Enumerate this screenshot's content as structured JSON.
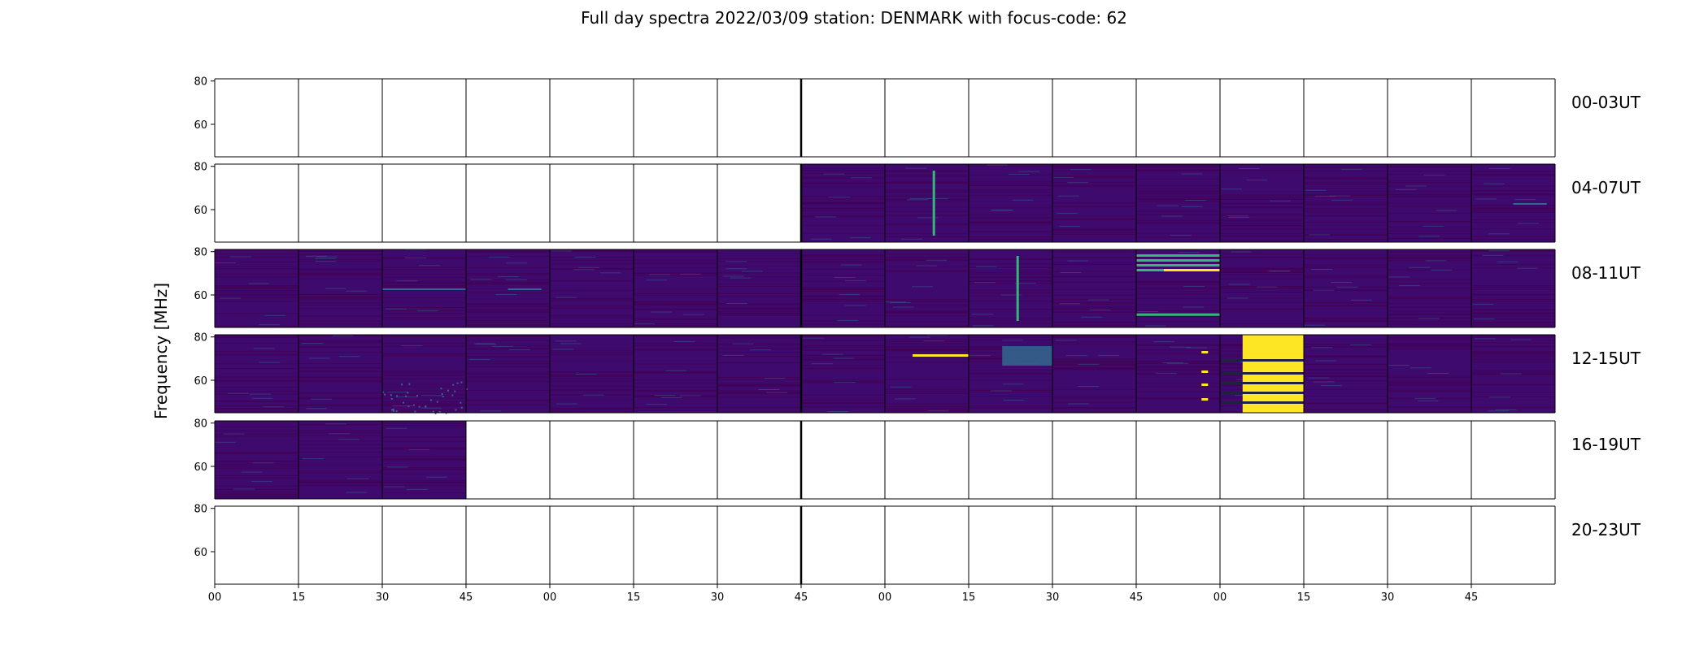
{
  "chart_data": {
    "type": "heatmap",
    "title": "Full day spectra 2022/03/09 station: DENMARK with focus-code: 62",
    "ylabel": "Frequency [MHz]",
    "xlabel": "",
    "ylim": [
      45,
      81
    ],
    "yticks": [
      60,
      80
    ],
    "x_tick_labels": [
      "00",
      "15",
      "30",
      "45",
      "00",
      "15",
      "30",
      "45",
      "00",
      "15",
      "30",
      "45",
      "00",
      "15",
      "30",
      "45"
    ],
    "colormap": [
      "#440154",
      "#31688e",
      "#35b779",
      "#fde725"
    ],
    "background_color": "#3e0a6e",
    "rows": [
      {
        "label": "00-03UT",
        "filled": [
          0,
          0,
          0,
          0,
          0,
          0,
          0,
          0,
          0,
          0,
          0,
          0,
          0,
          0,
          0,
          0
        ]
      },
      {
        "label": "04-07UT",
        "filled": [
          0,
          0,
          0,
          0,
          0,
          0,
          0,
          1,
          1,
          1,
          1,
          1,
          1,
          1,
          1,
          1
        ]
      },
      {
        "label": "08-11UT",
        "filled": [
          1,
          1,
          1,
          1,
          1,
          1,
          1,
          1,
          1,
          1,
          1,
          1,
          1,
          1,
          1,
          1
        ]
      },
      {
        "label": "12-15UT",
        "filled": [
          1,
          1,
          1,
          1,
          1,
          1,
          1,
          1,
          1,
          1,
          1,
          1,
          1,
          1,
          1,
          1
        ]
      },
      {
        "label": "16-19UT",
        "filled": [
          1,
          1,
          1,
          0,
          0,
          0,
          0,
          0,
          0,
          0,
          0,
          0,
          0,
          0,
          0,
          0
        ]
      },
      {
        "label": "20-23UT",
        "filled": [
          0,
          0,
          0,
          0,
          0,
          0,
          0,
          0,
          0,
          0,
          0,
          0,
          0,
          0,
          0,
          0
        ]
      }
    ],
    "features": [
      {
        "row": 1,
        "panel": 8,
        "kind": "vline",
        "color": "#35b779"
      },
      {
        "row": 1,
        "panel": 15,
        "kind": "hdash",
        "color": "#31688e"
      },
      {
        "row": 2,
        "panel": 2,
        "kind": "hline",
        "color": "#31688e"
      },
      {
        "row": 2,
        "panel": 3,
        "kind": "hdash",
        "color": "#31688e"
      },
      {
        "row": 2,
        "panel": 9,
        "kind": "vline",
        "color": "#35b779"
      },
      {
        "row": 2,
        "panel": 11,
        "kind": "hband_multi",
        "color": "#35b779"
      },
      {
        "row": 2,
        "panel": 11,
        "kind": "hline_bright",
        "color": "#fde725"
      },
      {
        "row": 3,
        "panel": 8,
        "kind": "hline_bright",
        "color": "#fde725"
      },
      {
        "row": 3,
        "panel": 9,
        "kind": "hband",
        "color": "#31688e"
      },
      {
        "row": 3,
        "panel": 11,
        "kind": "spots",
        "color": "#fde725"
      },
      {
        "row": 3,
        "panel": 12,
        "kind": "block",
        "color": "#fde725"
      },
      {
        "row": 3,
        "panel": 2,
        "kind": "speckle",
        "color": "#31688e"
      }
    ]
  }
}
